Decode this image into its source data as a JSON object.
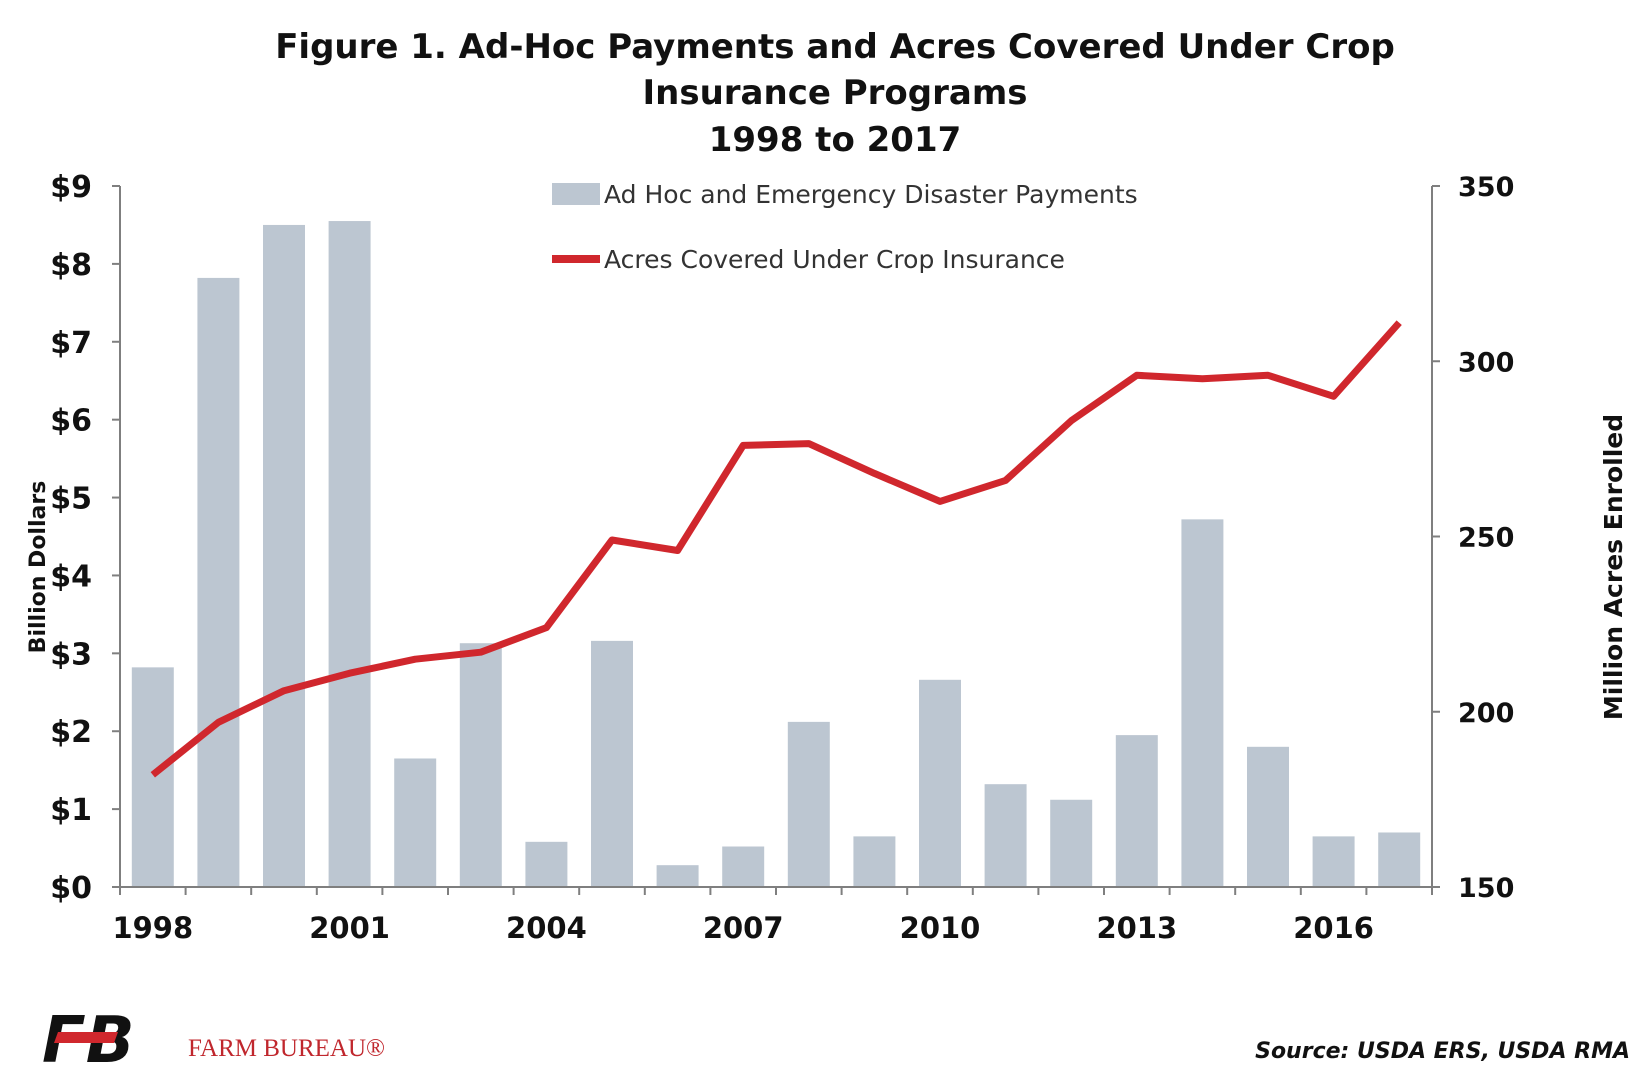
{
  "chart_data": {
    "type": "bar+line",
    "title_lines": [
      "Figure 1. Ad-Hoc Payments and Acres Covered Under Crop",
      "Insurance Programs",
      "1998 to 2017"
    ],
    "x": [
      1998,
      1999,
      2000,
      2001,
      2002,
      2003,
      2004,
      2005,
      2006,
      2007,
      2008,
      2009,
      2010,
      2011,
      2012,
      2013,
      2014,
      2015,
      2016,
      2017
    ],
    "x_tick_labels": [
      "1998",
      "2001",
      "2004",
      "2007",
      "2010",
      "2013",
      "2016"
    ],
    "y_left": {
      "label": "Billion Dollars",
      "lim": [
        0,
        9
      ],
      "tick_labels": [
        "$0",
        "$1",
        "$2",
        "$3",
        "$4",
        "$5",
        "$6",
        "$7",
        "$8",
        "$9"
      ]
    },
    "y_right": {
      "label": "Million Acres Enrolled",
      "lim": [
        150,
        350
      ],
      "tick_labels": [
        "150",
        "200",
        "250",
        "300",
        "350"
      ]
    },
    "series": [
      {
        "name": "Ad Hoc and Emergency Disaster Payments",
        "type": "bar",
        "axis": "left",
        "color": "#bcc6d1",
        "values": [
          2.82,
          7.82,
          8.5,
          8.55,
          1.65,
          3.13,
          0.58,
          3.16,
          0.28,
          0.52,
          2.12,
          0.65,
          2.66,
          1.32,
          1.12,
          1.95,
          4.72,
          1.8,
          0.65,
          0.7
        ]
      },
      {
        "name": "Acres Covered Under Crop Insurance",
        "type": "line",
        "axis": "right",
        "color": "#d0272d",
        "values": [
          182,
          197,
          206,
          211,
          215,
          217,
          224,
          249,
          246,
          276,
          276.5,
          268,
          260,
          266,
          283,
          296,
          295,
          296,
          290,
          311
        ]
      }
    ]
  },
  "footer": {
    "brand_mark": "FB",
    "brand_name": "FARM BUREAU®",
    "source": "Source: USDA ERS, USDA RMA"
  }
}
